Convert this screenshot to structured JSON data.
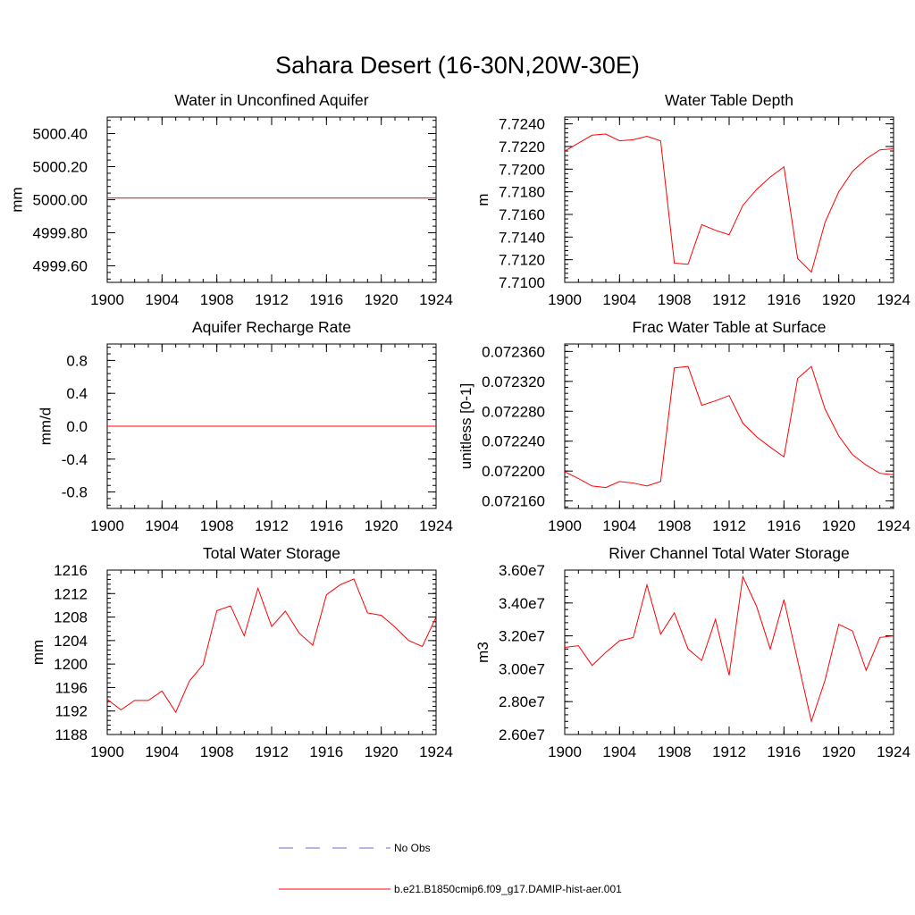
{
  "figure": {
    "title": "Sahara Desert (16-30N,20W-30E)",
    "line_color": "#ff0000",
    "obs_color": "#6b6bd6"
  },
  "legend": [
    {
      "label": "No Obs",
      "style": "dashed",
      "color": "#6b6bd6"
    },
    {
      "label": "b.e21.B1850cmip6.f09_g17.DAMIP-hist-aer.001",
      "style": "solid",
      "color": "#ff0000"
    }
  ],
  "chart_data": [
    {
      "type": "line",
      "title": "Water in Unconfined Aquifer",
      "xlabel": "",
      "ylabel": "mm",
      "xlim": [
        1900,
        1924
      ],
      "ylim": [
        4999.5,
        5000.5
      ],
      "x_ticks": [
        1900,
        1904,
        1908,
        1912,
        1916,
        1920,
        1924
      ],
      "x_tick_labels": [
        "1900",
        "1904",
        "1908",
        "1912",
        "1916",
        "1920",
        "1924"
      ],
      "y_ticks": [
        4999.6,
        4999.8,
        5000.0,
        5000.2,
        5000.4
      ],
      "y_tick_labels": [
        "4999.60",
        "4999.80",
        "5000.00",
        "5000.20",
        "5000.40"
      ],
      "y_minor_step": 0.04,
      "series": [
        {
          "x": [
            1900,
            1901,
            1902,
            1903,
            1904,
            1905,
            1906,
            1907,
            1908,
            1909,
            1910,
            1911,
            1912,
            1913,
            1914,
            1915,
            1916,
            1917,
            1918,
            1919,
            1920,
            1921,
            1922,
            1923,
            1924
          ],
          "values": [
            5000.01,
            5000.01,
            5000.01,
            5000.01,
            5000.01,
            5000.01,
            5000.01,
            5000.01,
            5000.01,
            5000.01,
            5000.01,
            5000.01,
            5000.01,
            5000.01,
            5000.01,
            5000.01,
            5000.01,
            5000.01,
            5000.01,
            5000.01,
            5000.01,
            5000.01,
            5000.01,
            5000.01,
            5000.01
          ]
        }
      ]
    },
    {
      "type": "line",
      "title": "Water Table Depth",
      "xlabel": "",
      "ylabel": "m",
      "xlim": [
        1900,
        1924
      ],
      "ylim": [
        7.71,
        7.7246
      ],
      "x_ticks": [
        1900,
        1904,
        1908,
        1912,
        1916,
        1920,
        1924
      ],
      "x_tick_labels": [
        "1900",
        "1904",
        "1908",
        "1912",
        "1916",
        "1920",
        "1924"
      ],
      "y_ticks": [
        7.71,
        7.712,
        7.714,
        7.716,
        7.718,
        7.72,
        7.722,
        7.724
      ],
      "y_tick_labels": [
        "7.7100",
        "7.7120",
        "7.7140",
        "7.7160",
        "7.7180",
        "7.7200",
        "7.7220",
        "7.7240"
      ],
      "y_minor_step": 0.0004,
      "series": [
        {
          "x": [
            1900,
            1901,
            1902,
            1903,
            1904,
            1905,
            1906,
            1907,
            1908,
            1909,
            1910,
            1911,
            1912,
            1913,
            1914,
            1915,
            1916,
            1917,
            1918,
            1919,
            1920,
            1921,
            1922,
            1923,
            1924
          ],
          "values": [
            7.7216,
            7.7223,
            7.723,
            7.7231,
            7.7225,
            7.7226,
            7.7229,
            7.7225,
            7.7117,
            7.7116,
            7.7151,
            7.7146,
            7.7142,
            7.7168,
            7.7182,
            7.7193,
            7.7202,
            7.7121,
            7.7109,
            7.7153,
            7.718,
            7.7198,
            7.7209,
            7.7217,
            7.7218
          ]
        }
      ]
    },
    {
      "type": "line",
      "title": "Aquifer Recharge Rate",
      "xlabel": "",
      "ylabel": "mm/d",
      "xlim": [
        1900,
        1924
      ],
      "ylim": [
        -1.0,
        1.0
      ],
      "x_ticks": [
        1900,
        1904,
        1908,
        1912,
        1916,
        1920,
        1924
      ],
      "x_tick_labels": [
        "1900",
        "1904",
        "1908",
        "1912",
        "1916",
        "1920",
        "1924"
      ],
      "y_ticks": [
        -0.8,
        -0.4,
        0.0,
        0.4,
        0.8
      ],
      "y_tick_labels": [
        "-0.8",
        "-0.4",
        "0.0",
        "0.4",
        "0.8"
      ],
      "y_minor_step": 0.08,
      "series": [
        {
          "x": [
            1900,
            1901,
            1902,
            1903,
            1904,
            1905,
            1906,
            1907,
            1908,
            1909,
            1910,
            1911,
            1912,
            1913,
            1914,
            1915,
            1916,
            1917,
            1918,
            1919,
            1920,
            1921,
            1922,
            1923,
            1924
          ],
          "values": [
            0,
            0,
            0,
            0,
            0,
            0,
            0,
            0,
            0,
            0,
            0,
            0,
            0,
            0,
            0,
            0,
            0,
            0,
            0,
            0,
            0,
            0,
            0,
            0,
            0
          ]
        }
      ]
    },
    {
      "type": "line",
      "title": "Frac Water Table at Surface",
      "xlabel": "",
      "ylabel": "unitless [0-1]",
      "xlim": [
        1900,
        1924
      ],
      "ylim": [
        0.07215,
        0.07237
      ],
      "x_ticks": [
        1900,
        1904,
        1908,
        1912,
        1916,
        1920,
        1924
      ],
      "x_tick_labels": [
        "1900",
        "1904",
        "1908",
        "1912",
        "1916",
        "1920",
        "1924"
      ],
      "y_ticks": [
        0.07216,
        0.0722,
        0.07224,
        0.07228,
        0.07232,
        0.07236
      ],
      "y_tick_labels": [
        "0.072160",
        "0.072200",
        "0.072240",
        "0.072280",
        "0.072320",
        "0.072360"
      ],
      "y_minor_step": 8e-06,
      "series": [
        {
          "x": [
            1900,
            1901,
            1902,
            1903,
            1904,
            1905,
            1906,
            1907,
            1908,
            1909,
            1910,
            1911,
            1912,
            1913,
            1914,
            1915,
            1916,
            1917,
            1918,
            1919,
            1920,
            1921,
            1922,
            1923,
            1924
          ],
          "values": [
            0.072199,
            0.07219,
            0.07218,
            0.072178,
            0.072186,
            0.072184,
            0.07218,
            0.072186,
            0.072338,
            0.07234,
            0.072288,
            0.072294,
            0.072301,
            0.072264,
            0.072246,
            0.072232,
            0.072219,
            0.072324,
            0.07234,
            0.072283,
            0.072247,
            0.072222,
            0.072208,
            0.072197,
            0.072195
          ]
        }
      ]
    },
    {
      "type": "line",
      "title": "Total Water Storage",
      "xlabel": "",
      "ylabel": "mm",
      "xlim": [
        1900,
        1924
      ],
      "ylim": [
        1188,
        1216
      ],
      "x_ticks": [
        1900,
        1904,
        1908,
        1912,
        1916,
        1920,
        1924
      ],
      "x_tick_labels": [
        "1900",
        "1904",
        "1908",
        "1912",
        "1916",
        "1920",
        "1924"
      ],
      "y_ticks": [
        1188,
        1192,
        1196,
        1200,
        1204,
        1208,
        1212,
        1216
      ],
      "y_tick_labels": [
        "1188",
        "1192",
        "1196",
        "1200",
        "1204",
        "1208",
        "1212",
        "1216"
      ],
      "y_minor_step": 0.8,
      "series": [
        {
          "x": [
            1900,
            1901,
            1902,
            1903,
            1904,
            1905,
            1906,
            1907,
            1908,
            1909,
            1910,
            1911,
            1912,
            1913,
            1914,
            1915,
            1916,
            1917,
            1918,
            1919,
            1920,
            1921,
            1922,
            1923,
            1924
          ],
          "values": [
            1194.0,
            1192.2,
            1193.8,
            1193.8,
            1195.4,
            1191.8,
            1197.1,
            1199.9,
            1209.1,
            1209.9,
            1204.8,
            1212.9,
            1206.4,
            1209.0,
            1205.3,
            1203.2,
            1211.8,
            1213.5,
            1214.5,
            1208.7,
            1208.3,
            1206.3,
            1204.0,
            1203.0,
            1208.0
          ]
        }
      ]
    },
    {
      "type": "line",
      "title": "River Channel Total Water Storage",
      "xlabel": "",
      "ylabel": "m3",
      "xlim": [
        1900,
        1924
      ],
      "ylim": [
        26000000,
        36000000
      ],
      "x_ticks": [
        1900,
        1904,
        1908,
        1912,
        1916,
        1920,
        1924
      ],
      "x_tick_labels": [
        "1900",
        "1904",
        "1908",
        "1912",
        "1916",
        "1920",
        "1924"
      ],
      "y_ticks": [
        26000000,
        28000000,
        30000000,
        32000000,
        34000000,
        36000000
      ],
      "y_tick_labels": [
        "2.60e7",
        "2.80e7",
        "3.00e7",
        "3.20e7",
        "3.40e7",
        "3.60e7"
      ],
      "y_minor_step": 400000,
      "series": [
        {
          "x": [
            1900,
            1901,
            1902,
            1903,
            1904,
            1905,
            1906,
            1907,
            1908,
            1909,
            1910,
            1911,
            1912,
            1913,
            1914,
            1915,
            1916,
            1917,
            1918,
            1919,
            1920,
            1921,
            1922,
            1923,
            1924
          ],
          "values": [
            31300000,
            31400000,
            30200000,
            31000000,
            31700000,
            31900000,
            35100000,
            32100000,
            33400000,
            31200000,
            30500000,
            33000000,
            29600000,
            35600000,
            33800000,
            31200000,
            34200000,
            30500000,
            26800000,
            29300000,
            32700000,
            32300000,
            29900000,
            31900000,
            32000000
          ]
        }
      ]
    }
  ]
}
